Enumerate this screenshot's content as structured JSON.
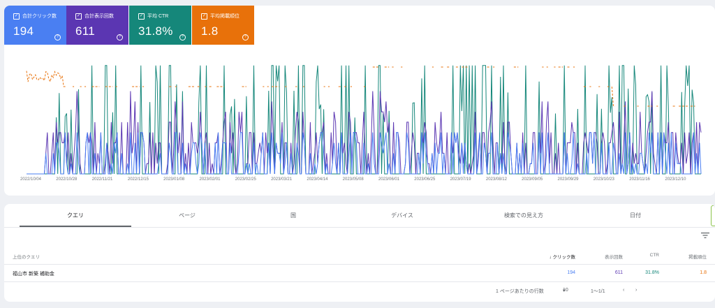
{
  "metrics": [
    {
      "label": "合計クリック数",
      "value": "194",
      "color": "#4a7ff2"
    },
    {
      "label": "合計表示回数",
      "value": "611",
      "color": "#5b36b2"
    },
    {
      "label": "平均 CTR",
      "value": "31.8%",
      "color": "#15877a"
    },
    {
      "label": "平均掲載順位",
      "value": "1.8",
      "color": "#e8710a"
    }
  ],
  "chart_data": {
    "type": "line",
    "x_ticks": [
      "2022/10/04",
      "2022/10/28",
      "2022/11/21",
      "2022/12/15",
      "2023/01/08",
      "2023/02/01",
      "2023/02/25",
      "2023/03/21",
      "2023/04/14",
      "2023/05/08",
      "2023/06/01",
      "2023/06/25",
      "2023/07/19",
      "2023/08/12",
      "2023/09/05",
      "2023/09/29",
      "2023/10/23",
      "2023/11/16",
      "2023/12/10"
    ],
    "series": [
      {
        "color": "#4a7ff2"
      },
      {
        "color": "#5b36b2"
      },
      {
        "color": "#15877a"
      },
      {
        "color": "#e8710a"
      }
    ],
    "grid": false,
    "legend": "none"
  },
  "tabs": [
    "クエリ",
    "ページ",
    "国",
    "デバイス",
    "検索での見え方",
    "日付"
  ],
  "table": {
    "headers": [
      "上位のクエリ",
      "クリック数",
      "表示回数",
      "CTR",
      "掲載順位"
    ],
    "rows": [
      {
        "query": "福山市 新築 補助金",
        "clicks": "194",
        "impressions": "611",
        "ctr": "31.8%",
        "position": "1.8"
      }
    ]
  },
  "pager": {
    "rows_label": "1 ページあたりの行数",
    "rows_value": "10",
    "range": "1〜1/1"
  }
}
